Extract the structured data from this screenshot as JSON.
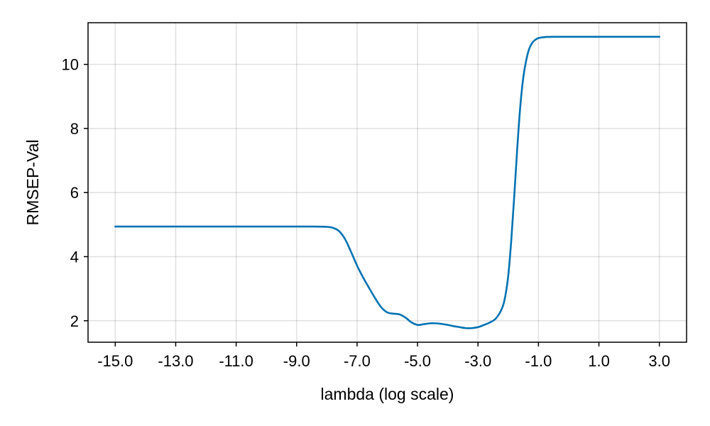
{
  "chart_data": {
    "type": "line",
    "xlabel": "lambda (log scale)",
    "ylabel": "RMSEP-Val",
    "xlim": [
      -15.9,
      3.9
    ],
    "ylim": [
      1.33,
      11.3
    ],
    "xticks": [
      -15,
      -13,
      -11,
      -9,
      -7,
      -5,
      -3,
      -1,
      1,
      3
    ],
    "xtick_labels": [
      "-15.0",
      "-13.0",
      "-11.0",
      "-9.0",
      "-7.0",
      "-5.0",
      "-3.0",
      "-1.0",
      "1.0",
      "3.0"
    ],
    "yticks": [
      2,
      4,
      6,
      8,
      10
    ],
    "ytick_labels": [
      "2",
      "4",
      "6",
      "8",
      "10"
    ],
    "grid": true,
    "legend": "none",
    "series": [
      {
        "color": "#0072b2",
        "x": [
          -15,
          -13,
          -11,
          -9,
          -8.5,
          -8,
          -7.8,
          -7.6,
          -7.4,
          -7.2,
          -7.0,
          -6.8,
          -6.6,
          -6.4,
          -6.2,
          -6.0,
          -5.8,
          -5.6,
          -5.4,
          -5.2,
          -5.0,
          -4.8,
          -4.6,
          -4.4,
          -4.2,
          -4.0,
          -3.8,
          -3.6,
          -3.4,
          -3.2,
          -3.0,
          -2.8,
          -2.6,
          -2.4,
          -2.2,
          -2.1,
          -2.0,
          -1.9,
          -1.8,
          -1.7,
          -1.6,
          -1.5,
          -1.4,
          -1.3,
          -1.2,
          -1.1,
          -1.0,
          -0.8,
          -0.5,
          0,
          1,
          2,
          3
        ],
        "y": [
          4.94,
          4.94,
          4.94,
          4.94,
          4.94,
          4.93,
          4.9,
          4.8,
          4.55,
          4.15,
          3.72,
          3.35,
          3.02,
          2.7,
          2.42,
          2.26,
          2.22,
          2.2,
          2.1,
          1.95,
          1.87,
          1.89,
          1.92,
          1.92,
          1.9,
          1.87,
          1.83,
          1.8,
          1.77,
          1.77,
          1.8,
          1.87,
          1.95,
          2.08,
          2.4,
          2.75,
          3.4,
          4.5,
          5.9,
          7.4,
          8.7,
          9.6,
          10.15,
          10.5,
          10.68,
          10.77,
          10.82,
          10.85,
          10.86,
          10.86,
          10.86,
          10.86,
          10.86
        ]
      }
    ]
  }
}
